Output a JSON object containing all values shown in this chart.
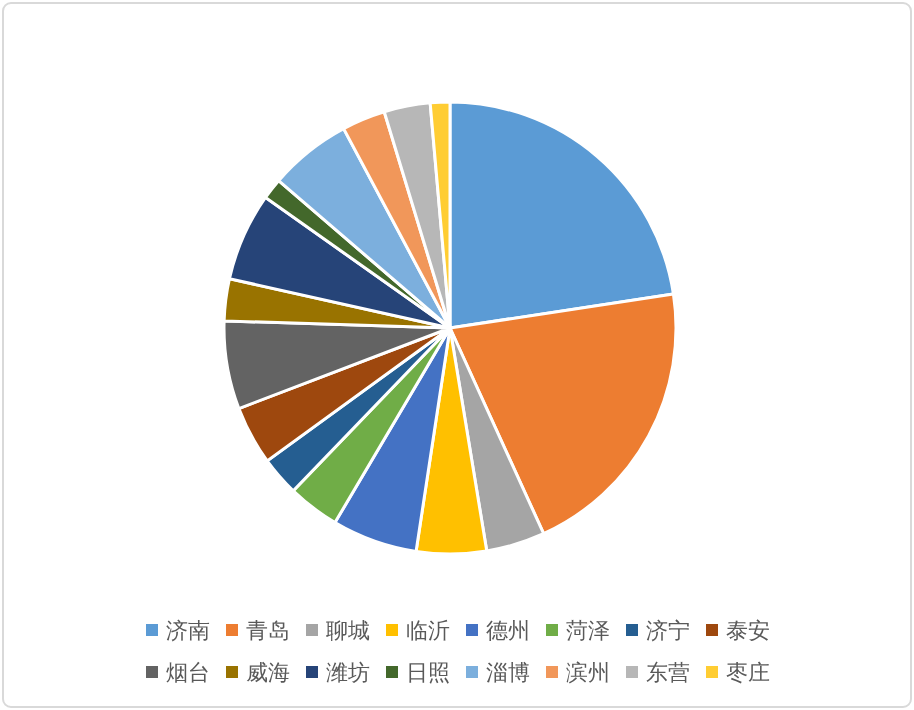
{
  "chart_data": {
    "type": "pie",
    "categories": [
      "济南",
      "青岛",
      "聊城",
      "临沂",
      "德州",
      "菏泽",
      "济宁",
      "泰安",
      "烟台",
      "威海",
      "潍坊",
      "日照",
      "淄博",
      "滨州",
      "东营",
      "枣庄"
    ],
    "values": [
      22.6,
      20.6,
      4.2,
      5,
      6.1,
      3.7,
      2.8,
      4.2,
      6.3,
      3,
      6.3,
      1.5,
      5.9,
      3.1,
      3.3,
      1.4
    ],
    "colors": [
      "#5b9bd5",
      "#ed7d31",
      "#a5a5a5",
      "#ffc000",
      "#4472c4",
      "#70ad47",
      "#255e91",
      "#9e480e",
      "#636363",
      "#997300",
      "#264478",
      "#43682b",
      "#7cafdd",
      "#f1975a",
      "#b7b7b7",
      "#ffcd33"
    ],
    "legend": "bottom"
  }
}
